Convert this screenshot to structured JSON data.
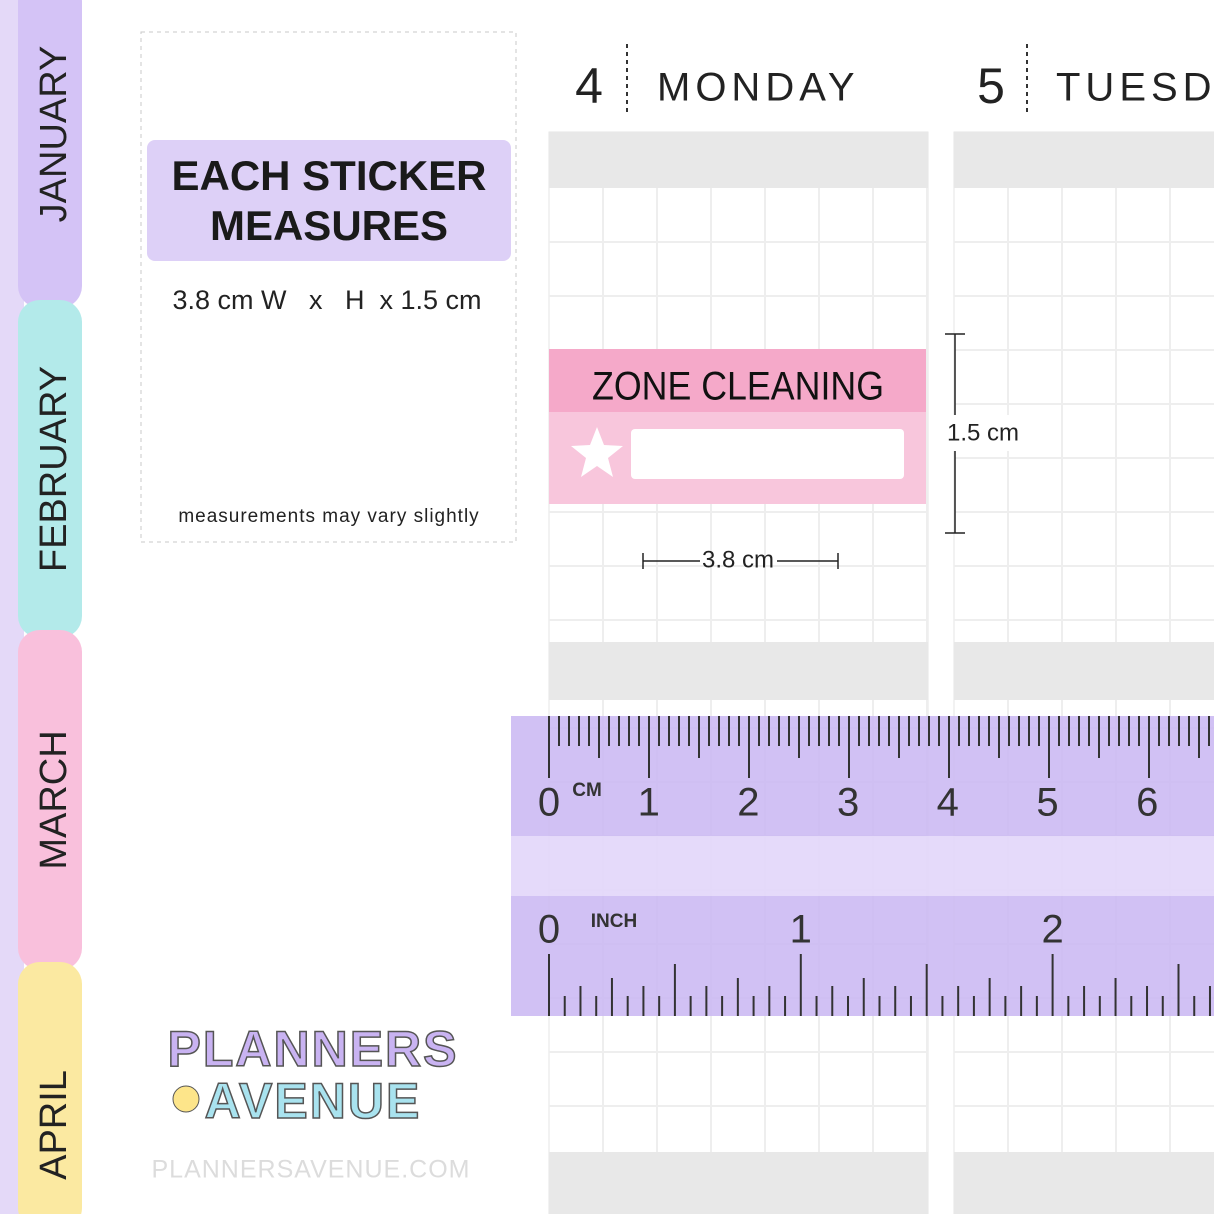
{
  "tabs": [
    "JANUARY",
    "FEBRUARY",
    "MARCH",
    "APRIL"
  ],
  "info": {
    "title_lines": [
      "EACH STICKER",
      "MEASURES"
    ],
    "size": "3.8 cm W   x   H  x 1.5 cm",
    "note": "measurements may vary slightly"
  },
  "days": [
    {
      "number": "4",
      "name": "MONDAY"
    },
    {
      "number": "5",
      "name": "TUESDAY"
    }
  ],
  "sticker": {
    "label": "ZONE CLEANING"
  },
  "dimensions": {
    "height": "1.5 cm",
    "width": "3.8 cm"
  },
  "ruler": {
    "cm_unit": "CM",
    "cm_labels": [
      "0",
      "1",
      "2",
      "3",
      "4",
      "5",
      "6"
    ],
    "inch_unit": "INCH",
    "inch_labels": [
      "0",
      "1",
      "2"
    ]
  },
  "logo": {
    "line1": "PLANNERS",
    "line2": "AVENUE",
    "website": "PLANNERSAVENUE.COM"
  }
}
